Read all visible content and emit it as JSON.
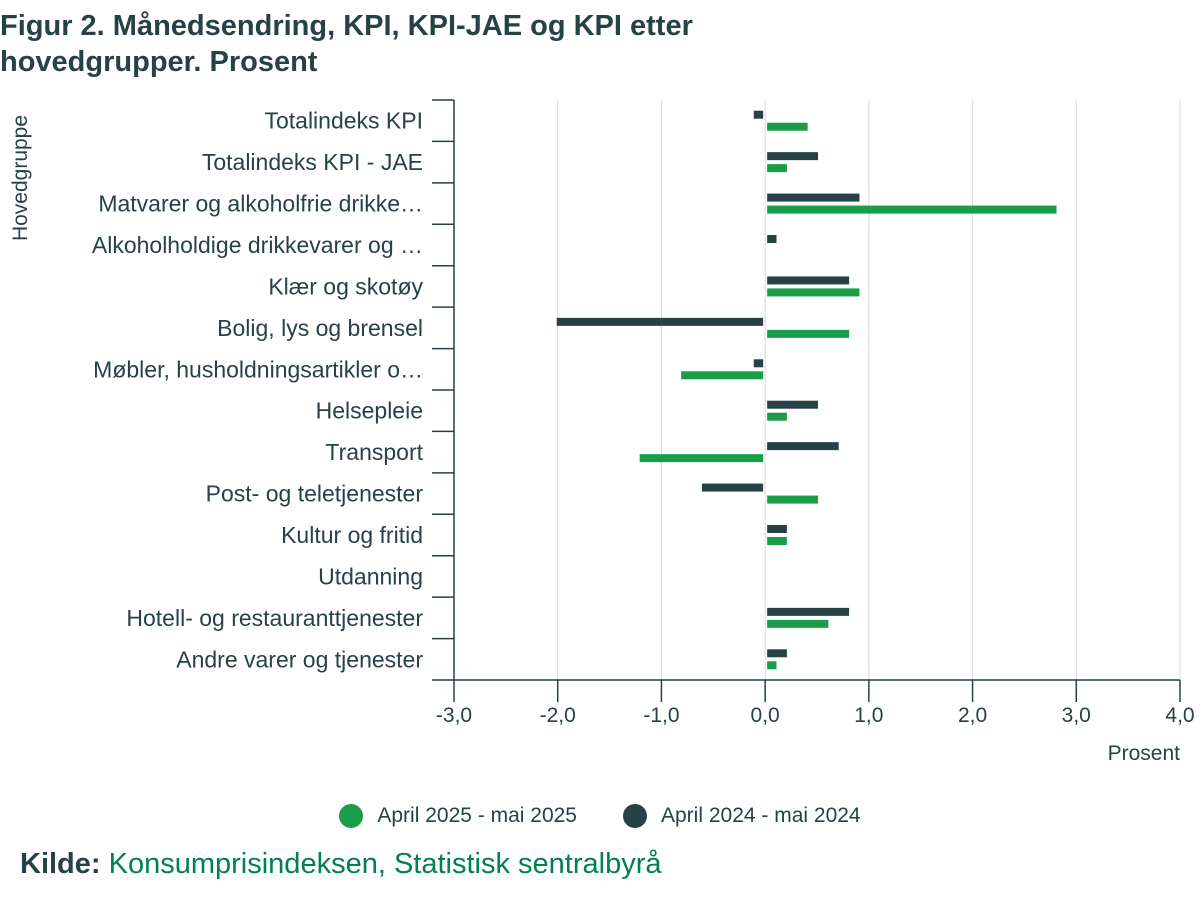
{
  "title": "Figur 2. Månedsendring, KPI, KPI-JAE og KPI etter hovedgrupper. Prosent",
  "source": {
    "label": "Kilde:",
    "text": "Konsumprisindeksen, Statistisk sentralbyrå"
  },
  "colors": {
    "series_2025": "#1a9d49",
    "series_2024": "#274247",
    "grid": "#d9d9d9",
    "axis": "#274247",
    "source_link": "#00824d"
  },
  "chart_data": {
    "type": "bar",
    "orientation": "horizontal",
    "title": "Figur 2. Månedsendring, KPI, KPI-JAE og KPI etter hovedgrupper. Prosent",
    "ylabel": "Hovedgruppe",
    "xlabel": "Prosent",
    "xlim": [
      -3.0,
      4.0
    ],
    "x_ticks": [
      "-3,0",
      "-2,0",
      "-1,0",
      "0,0",
      "1,0",
      "2,0",
      "3,0",
      "4,0"
    ],
    "grid": true,
    "legend_position": "bottom-center",
    "categories": [
      "Totalindeks KPI",
      "Totalindeks KPI - JAE",
      "Matvarer og alkoholfrie drikke…",
      "Alkoholholdige drikkevarer og …",
      "Klær og skotøy",
      "Bolig, lys og brensel",
      "Møbler, husholdningsartikler o…",
      "Helsepleie",
      "Transport",
      "Post- og teletjenester",
      "Kultur og fritid",
      "Utdanning",
      "Hotell- og restauranttjenester",
      "Andre varer og tjenester"
    ],
    "series": [
      {
        "name": "April 2025 - mai 2025",
        "color": "#1a9d49",
        "values": [
          0.4,
          0.2,
          2.8,
          0.0,
          0.9,
          0.8,
          -0.8,
          0.2,
          -1.2,
          0.5,
          0.2,
          0.0,
          0.6,
          0.1
        ]
      },
      {
        "name": "April 2024 - mai 2024",
        "color": "#274247",
        "values": [
          -0.1,
          0.5,
          0.9,
          0.1,
          0.8,
          -2.0,
          -0.1,
          0.5,
          0.7,
          -0.6,
          0.2,
          0.0,
          0.8,
          0.2
        ]
      }
    ]
  }
}
